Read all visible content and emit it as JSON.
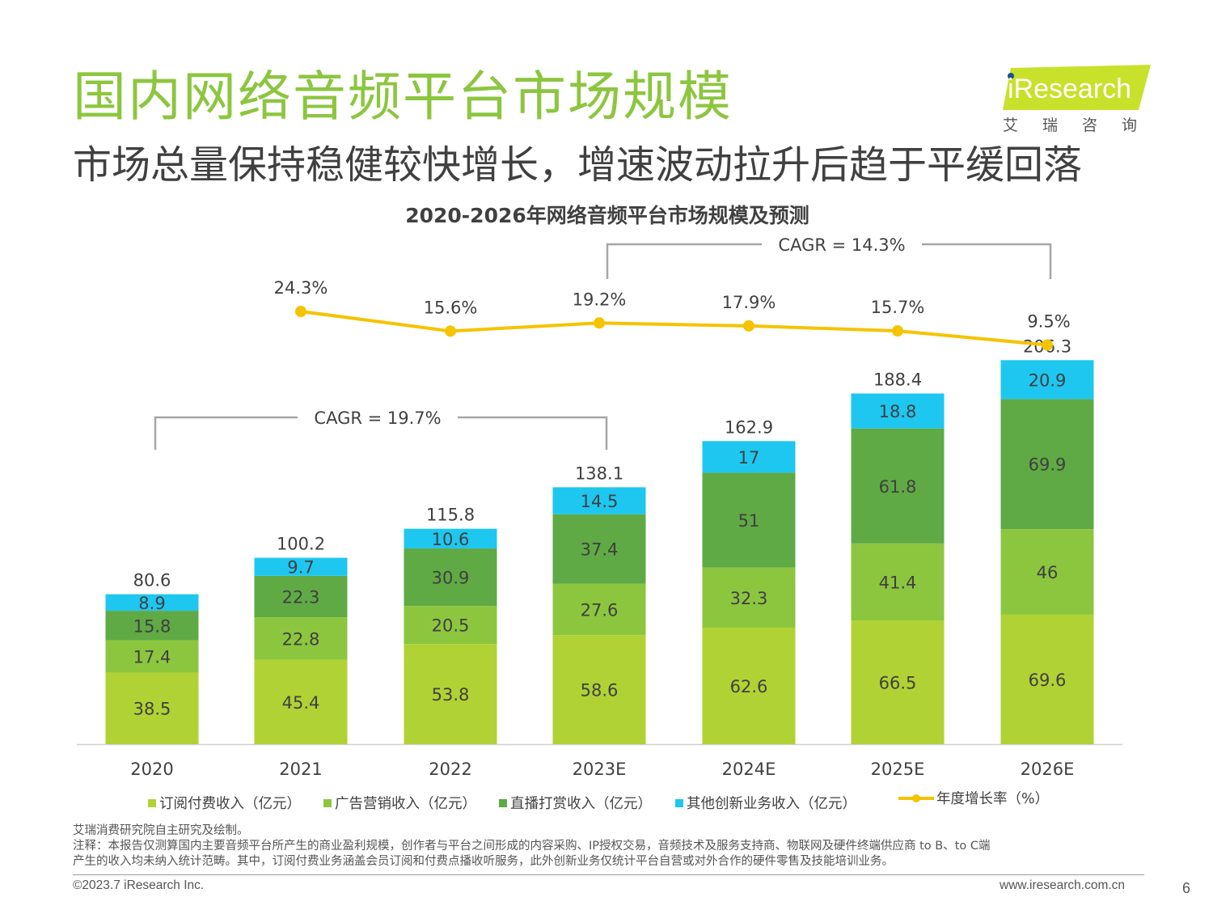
{
  "header": {
    "title": "国内网络音频平台市场规模",
    "subtitle": "市场总量保持稳健较快增长，增速波动拉升后趋于平缓回落"
  },
  "logo": {
    "wordmark": "iResearch",
    "cn_name": "艾瑞咨询",
    "brand_color": "#c8e12a"
  },
  "chart_data": {
    "type": "bar",
    "stacked": true,
    "title": "2020-2026年网络音频平台市场规模及预测",
    "categories": [
      "2020",
      "2021",
      "2022",
      "2023E",
      "2024E",
      "2025E",
      "2026E"
    ],
    "series": [
      {
        "name": "订阅付费收入（亿元）",
        "color": "#b1d234",
        "values": [
          38.5,
          45.4,
          53.8,
          58.6,
          62.6,
          66.5,
          69.6
        ]
      },
      {
        "name": "广告营销收入（亿元）",
        "color": "#8cc63f",
        "values": [
          17.4,
          22.8,
          20.5,
          27.6,
          32.3,
          41.4,
          46.0
        ]
      },
      {
        "name": "直播打赏收入（亿元）",
        "color": "#5faa44",
        "values": [
          15.8,
          22.3,
          30.9,
          37.4,
          51.0,
          61.8,
          69.9
        ]
      },
      {
        "name": "其他创新业务收入（亿元）",
        "color": "#1ec7f0",
        "values": [
          8.9,
          9.7,
          10.6,
          14.5,
          17.0,
          18.8,
          20.9
        ]
      }
    ],
    "totals": [
      "80.6",
      "100.2",
      "115.8",
      "138.1",
      "162.9",
      "188.4",
      "206.3"
    ],
    "growth_line": {
      "name": "年度增长率（%）",
      "color": "#f5c300",
      "values": [
        null,
        24.3,
        15.6,
        19.2,
        17.9,
        15.7,
        9.5
      ],
      "labels": [
        "",
        "24.3%",
        "15.6%",
        "19.2%",
        "17.9%",
        "15.7%",
        "9.5%"
      ]
    },
    "cagr_annotations": [
      {
        "label": "CAGR = 19.7%",
        "from": "2020",
        "to": "2023E"
      },
      {
        "label": "CAGR = 14.3%",
        "from": "2023E",
        "to": "2026E"
      }
    ]
  },
  "notes": {
    "source": "艾瑞消费研究院自主研究及绘制。",
    "note_line1": "注释：本报告仅测算国内主要音频平台所产生的商业盈利规模，创作者与平台之间形成的内容采购、IP授权交易，音频技术及服务支持商、物联网及硬件终端供应商 to B、to C端",
    "note_line2": "产生的收入均未纳入统计范畴。其中，订阅付费业务涵盖会员订阅和付费点播收听服务，此外创新业务仅统计平台自营或对外合作的硬件零售及技能培训业务。"
  },
  "footer": {
    "copyright": "©2023.7 iResearch Inc.",
    "website": "www.iresearch.com.cn",
    "page_number": "6"
  }
}
